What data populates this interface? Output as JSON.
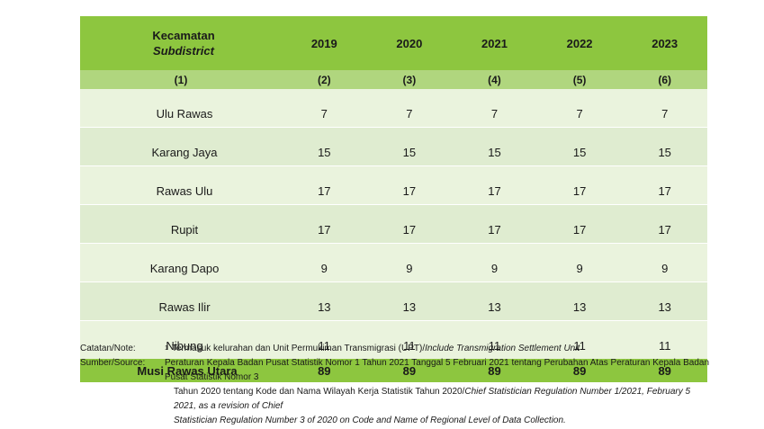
{
  "header": {
    "col_id": "Kecamatan",
    "col_en": "Subdistrict",
    "years": [
      "2019",
      "2020",
      "2021",
      "2022",
      "2023"
    ]
  },
  "col_numbers": [
    "(1)",
    "(2)",
    "(3)",
    "(4)",
    "(5)",
    "(6)"
  ],
  "rows": [
    {
      "name": "Ulu Rawas",
      "values": [
        "7",
        "7",
        "7",
        "7",
        "7"
      ]
    },
    {
      "name": "Karang Jaya",
      "values": [
        "15",
        "15",
        "15",
        "15",
        "15"
      ]
    },
    {
      "name": "Rawas Ulu",
      "values": [
        "17",
        "17",
        "17",
        "17",
        "17"
      ]
    },
    {
      "name": "Rupit",
      "values": [
        "17",
        "17",
        "17",
        "17",
        "17"
      ]
    },
    {
      "name": "Karang Dapo",
      "values": [
        "9",
        "9",
        "9",
        "9",
        "9"
      ]
    },
    {
      "name": "Rawas Ilir",
      "values": [
        "13",
        "13",
        "13",
        "13",
        "13"
      ]
    },
    {
      "name": "Nibung",
      "values": [
        "11",
        "11",
        "11",
        "11",
        "11"
      ]
    }
  ],
  "total": {
    "name": "Musi Rawas Utara",
    "values": [
      "89",
      "89",
      "89",
      "89",
      "89"
    ]
  },
  "notes": {
    "note_label": "Catatan/Note:",
    "note_sup": "1",
    "note_text_id": "Termasuk kelurahan dan Unit Permukiman Transmigrasi (UPT)/",
    "note_text_en": "Include Transmigration Settlement Unit",
    "source_label": "Sumber/Source:",
    "source_line1": "Peraturan Kepala Badan Pusat Statistik Nomor 1 Tahun 2021 Tanggal 5 Februari 2021 tentang Perubahan Atas Peraturan Kepala Badan Pusat Statistik Nomor 3",
    "source_line2_id": "Tahun 2020 tentang Kode dan Nama Wilayah Kerja Statistik Tahun 2020/",
    "source_line2_en": "Chief Statistician Regulation Number 1/2021, February 5 2021, as a revision of Chief",
    "source_line3_en": "Statistician Regulation Number 3 of 2020 on Code and Name of Regional Level of Data Collection."
  }
}
